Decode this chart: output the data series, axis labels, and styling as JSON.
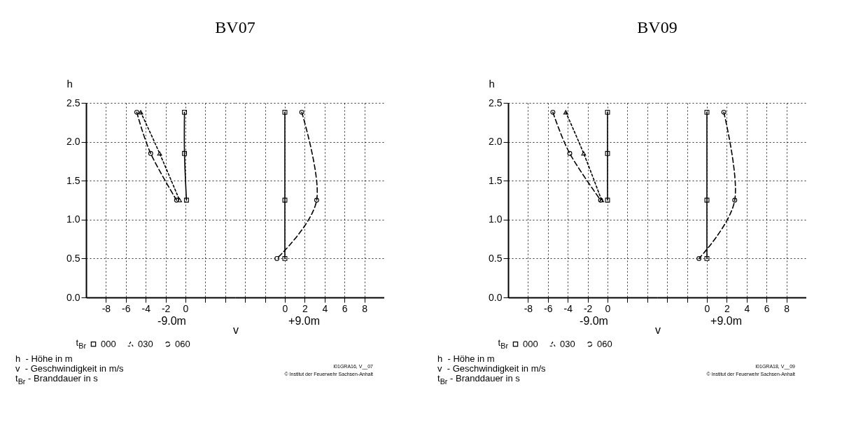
{
  "chart_data": [
    {
      "type": "line",
      "title": "BV07",
      "xlabel": "-9.0m",
      "ylabel": "h",
      "xlim": [
        -10,
        5
      ],
      "ylim": [
        0,
        2.5
      ],
      "xticks": [
        -8,
        -6,
        -4,
        -2,
        0,
        {
          "value": 2,
          "label": null
        },
        {
          "value": 4,
          "label": null
        }
      ],
      "yticks": [
        {
          "value": 0,
          "label": "0.0"
        },
        0.5,
        {
          "value": 1,
          "label": "1.0"
        },
        1.5,
        {
          "value": 2,
          "label": "2.0"
        },
        2.5
      ],
      "grid": true,
      "legend": "bottom",
      "legend_title": "t$_{Br}$",
      "annotations": [
        "v",
        "h  - Höhe in m",
        "v  - Geschwindigkeit in m/s",
        "t$_{Br}$ - Branddauer in s",
        "I01GRA16, V__07",
        "© Institut der Feuerwehr Sachsen-Anhalt"
      ],
      "series": [
        {
          "name": "000",
          "color": "#000000",
          "marker": "square",
          "line_style": "solid",
          "x": [
            -0.1,
            -0.1,
            0.1
          ],
          "values": [
            2.38,
            1.85,
            1.25
          ]
        },
        {
          "name": "030",
          "color": "#000000",
          "marker": "triangle",
          "line_style": "dotted",
          "x": [
            -4.5,
            -2.6,
            -0.6
          ],
          "values": [
            2.38,
            1.85,
            1.25
          ]
        },
        {
          "name": "060",
          "color": "#000000",
          "marker": "circle",
          "line_style": "dashed",
          "x": [
            -4.9,
            -3.5,
            -0.9
          ],
          "values": [
            2.38,
            1.85,
            1.25
          ]
        }
      ]
    },
    {
      "type": "line",
      "xlabel": "+9.0m",
      "xlim": [
        -5,
        10
      ],
      "ylim": [
        0,
        2.5
      ],
      "xticks": [
        {
          "value": -4,
          "label": null
        },
        {
          "value": -2,
          "label": null
        },
        0,
        2,
        4,
        6,
        8
      ],
      "yticks": [
        0,
        0.5,
        1,
        1.5,
        2,
        2.5
      ],
      "grid": true,
      "tick_labels": "x",
      "series": [
        {
          "color": "#000000",
          "marker": "square",
          "line_style": "solid",
          "x": [
            0,
            0,
            0
          ],
          "values": [
            2.38,
            1.25,
            0.5
          ]
        },
        {
          "color": "#000000",
          "marker": "circle",
          "line_style": "dashed",
          "x": [
            1.7,
            3.2,
            -0.8
          ],
          "values": [
            2.38,
            1.25,
            0.5
          ]
        }
      ]
    },
    {
      "type": "line",
      "title": "BV09",
      "xlabel": "-9.0m",
      "ylabel": "h",
      "xlim": [
        -10,
        5
      ],
      "ylim": [
        0,
        2.5
      ],
      "xticks": [
        -8,
        -6,
        -4,
        -2,
        0,
        {
          "value": 2,
          "label": null
        },
        {
          "value": 4,
          "label": null
        }
      ],
      "yticks": [
        {
          "value": 0,
          "label": "0.0"
        },
        0.5,
        {
          "value": 1,
          "label": "1.0"
        },
        1.5,
        {
          "value": 2,
          "label": "2.0"
        },
        2.5
      ],
      "grid": true,
      "legend": "bottom",
      "legend_title": "t$_{Br}$",
      "annotations": [
        "v",
        "h  - Höhe in m",
        "v  - Geschwindigkeit in m/s",
        "t$_{Br}$ - Branddauer in s",
        "I01GRA18, V__09",
        "© Institut der Feuerwehr Sachsen-Anhalt"
      ],
      "series": [
        {
          "name": "000",
          "color": "#000000",
          "marker": "square",
          "line_style": "solid",
          "x": [
            0,
            0,
            0
          ],
          "values": [
            2.38,
            1.85,
            1.25
          ]
        },
        {
          "name": "030",
          "color": "#000000",
          "marker": "triangle",
          "line_style": "dotted",
          "x": [
            -4.2,
            -2.4,
            -0.6
          ],
          "values": [
            2.38,
            1.85,
            1.25
          ]
        },
        {
          "name": "060",
          "color": "#000000",
          "marker": "circle",
          "line_style": "dashed",
          "x": [
            -5.5,
            -3.8,
            -0.7
          ],
          "values": [
            2.38,
            1.85,
            1.25
          ]
        }
      ]
    },
    {
      "type": "line",
      "xlabel": "+9.0m",
      "xlim": [
        -5,
        10
      ],
      "ylim": [
        0,
        2.5
      ],
      "xticks": [
        {
          "value": -4,
          "label": null
        },
        {
          "value": -2,
          "label": null
        },
        0,
        2,
        4,
        6,
        8
      ],
      "yticks": [
        0,
        0.5,
        1,
        1.5,
        2,
        2.5
      ],
      "grid": true,
      "tick_labels": "x",
      "series": [
        {
          "color": "#000000",
          "marker": "square",
          "line_style": "solid",
          "x": [
            0,
            0,
            0
          ],
          "values": [
            2.38,
            1.25,
            0.5
          ]
        },
        {
          "color": "#000000",
          "marker": "circle",
          "line_style": "dashed",
          "x": [
            1.7,
            2.8,
            -0.8
          ],
          "values": [
            2.38,
            1.25,
            0.5
          ]
        }
      ]
    }
  ]
}
